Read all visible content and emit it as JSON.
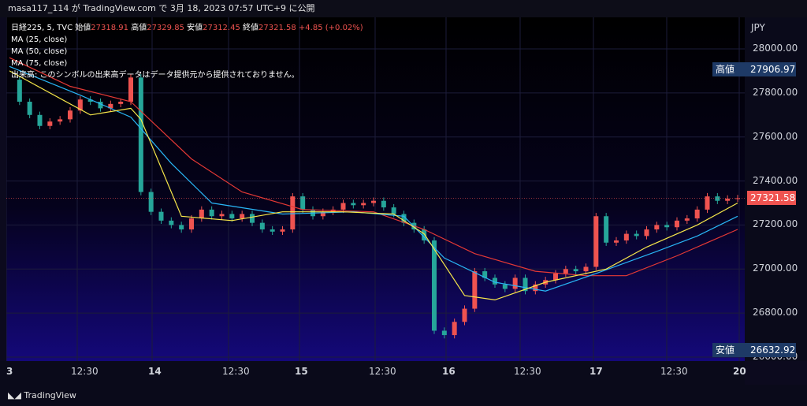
{
  "header": {
    "text": "masa117_114 が TradingView.com で 3月 18, 2023 07:57 UTC+9 に公開"
  },
  "legend": {
    "symbol": "日経225, 5, TVC",
    "open_label": "始値",
    "open": "27318.91",
    "high_label": "高値",
    "high": "27329.85",
    "low_label": "安値",
    "low": "27312.45",
    "close_label": "終値",
    "close": "27321.58",
    "change": "+4.85 (+0.02%)",
    "ma1": "MA (25, close)",
    "ma2": "MA (50, close)",
    "ma3": "MA (75, close)",
    "volume_note": "出来高: このシンボルの出来高データはデータ提供元から提供されておりません。"
  },
  "price_axis": {
    "currency": "JPY",
    "ticks": [
      "28000.00",
      "27800.00",
      "27600.00",
      "27400.00",
      "27200.00",
      "27000.00",
      "26800.00",
      "26600.00"
    ]
  },
  "tags": {
    "high_label": "高値",
    "high_value": "27906.97",
    "current_value": "27321.58",
    "low_label": "安値",
    "low_value": "26632.92"
  },
  "time_axis": {
    "labels": [
      "3",
      "12:30",
      "14",
      "12:30",
      "15",
      "12:30",
      "16",
      "12:30",
      "17",
      "12:30",
      "20"
    ]
  },
  "footer": {
    "logo_text": "TradingView"
  },
  "colors": {
    "up": "#ef5350",
    "down": "#26a69a",
    "ma25": "#f7e74a",
    "ma50": "#29b6f6",
    "ma75": "#e53935",
    "tag_bg": "#1e3a66",
    "current_bg": "#ef5350"
  },
  "chart_data": {
    "type": "candlestick",
    "symbol": "日経225, 5, TVC",
    "ylim": [
      26600,
      28000
    ],
    "x_labels": [
      "3",
      "12:30",
      "14",
      "12:30",
      "15",
      "12:30",
      "16",
      "12:30",
      "17",
      "12:30",
      "20"
    ],
    "close_path": [
      [
        0,
        27860
      ],
      [
        1,
        27760
      ],
      [
        2,
        27700
      ],
      [
        3,
        27650
      ],
      [
        4,
        27670
      ],
      [
        5,
        27680
      ],
      [
        6,
        27720
      ],
      [
        7,
        27770
      ],
      [
        8,
        27760
      ],
      [
        9,
        27730
      ],
      [
        10,
        27750
      ],
      [
        11,
        27760
      ],
      [
        12,
        27870
      ],
      [
        13,
        27350
      ],
      [
        14,
        27260
      ],
      [
        15,
        27220
      ],
      [
        16,
        27200
      ],
      [
        17,
        27180
      ],
      [
        18,
        27230
      ],
      [
        19,
        27270
      ],
      [
        20,
        27240
      ],
      [
        21,
        27250
      ],
      [
        22,
        27230
      ],
      [
        23,
        27250
      ],
      [
        24,
        27210
      ],
      [
        25,
        27180
      ],
      [
        26,
        27170
      ],
      [
        27,
        27180
      ],
      [
        28,
        27330
      ],
      [
        29,
        27270
      ],
      [
        30,
        27240
      ],
      [
        31,
        27260
      ],
      [
        32,
        27270
      ],
      [
        33,
        27300
      ],
      [
        34,
        27290
      ],
      [
        35,
        27300
      ],
      [
        36,
        27310
      ],
      [
        37,
        27280
      ],
      [
        38,
        27250
      ],
      [
        39,
        27210
      ],
      [
        40,
        27180
      ],
      [
        41,
        27130
      ],
      [
        42,
        26720
      ],
      [
        43,
        26700
      ],
      [
        44,
        26760
      ],
      [
        45,
        26820
      ],
      [
        46,
        26990
      ],
      [
        47,
        26960
      ],
      [
        48,
        26930
      ],
      [
        49,
        26910
      ],
      [
        50,
        26960
      ],
      [
        51,
        26900
      ],
      [
        52,
        26930
      ],
      [
        53,
        26950
      ],
      [
        54,
        26980
      ],
      [
        55,
        27000
      ],
      [
        56,
        26990
      ],
      [
        57,
        27010
      ],
      [
        58,
        27240
      ],
      [
        59,
        27120
      ],
      [
        60,
        27130
      ],
      [
        61,
        27160
      ],
      [
        62,
        27150
      ],
      [
        63,
        27180
      ],
      [
        64,
        27200
      ],
      [
        65,
        27190
      ],
      [
        66,
        27220
      ],
      [
        67,
        27230
      ],
      [
        68,
        27270
      ],
      [
        69,
        27330
      ],
      [
        70,
        27310
      ],
      [
        71,
        27320
      ],
      [
        72,
        27321.58
      ]
    ],
    "ma25_path": [
      [
        0,
        27900
      ],
      [
        8,
        27700
      ],
      [
        12,
        27730
      ],
      [
        13,
        27680
      ],
      [
        17,
        27240
      ],
      [
        22,
        27220
      ],
      [
        27,
        27260
      ],
      [
        33,
        27260
      ],
      [
        38,
        27250
      ],
      [
        41,
        27160
      ],
      [
        45,
        26880
      ],
      [
        48,
        26860
      ],
      [
        53,
        26940
      ],
      [
        59,
        27000
      ],
      [
        63,
        27100
      ],
      [
        68,
        27200
      ],
      [
        72,
        27300
      ]
    ],
    "ma50_path": [
      [
        0,
        27920
      ],
      [
        7,
        27790
      ],
      [
        12,
        27690
      ],
      [
        16,
        27480
      ],
      [
        20,
        27300
      ],
      [
        27,
        27250
      ],
      [
        34,
        27260
      ],
      [
        39,
        27240
      ],
      [
        43,
        27050
      ],
      [
        48,
        26940
      ],
      [
        53,
        26900
      ],
      [
        58,
        26980
      ],
      [
        64,
        27080
      ],
      [
        68,
        27150
      ],
      [
        72,
        27240
      ]
    ],
    "ma75_path": [
      [
        0,
        27960
      ],
      [
        6,
        27830
      ],
      [
        12,
        27760
      ],
      [
        18,
        27500
      ],
      [
        23,
        27350
      ],
      [
        29,
        27270
      ],
      [
        36,
        27260
      ],
      [
        41,
        27180
      ],
      [
        46,
        27070
      ],
      [
        52,
        26990
      ],
      [
        57,
        26970
      ],
      [
        61,
        26970
      ],
      [
        66,
        27060
      ],
      [
        72,
        27180
      ]
    ],
    "annotations": {
      "high": 27906.97,
      "low": 26632.92,
      "last": 27321.58
    }
  }
}
